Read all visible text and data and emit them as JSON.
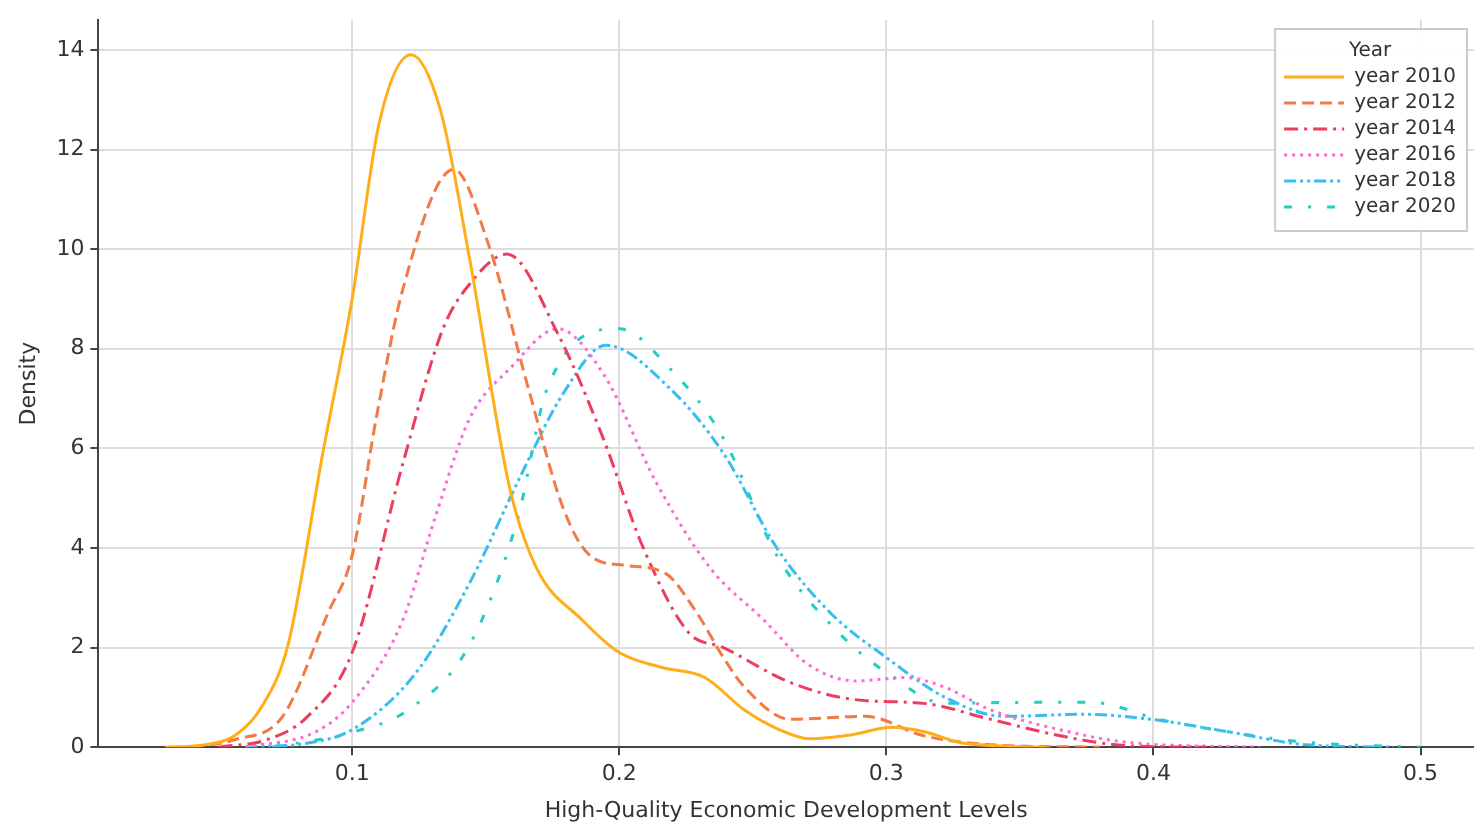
{
  "chart_data": {
    "type": "line",
    "xlabel": "High-Quality Economic Development Levels",
    "ylabel": "Density",
    "legend_title": "Year",
    "legend": "top right",
    "grid": true,
    "marker": "none",
    "xlim": [
      0.005,
      0.52
    ],
    "xticks": [
      0.1,
      0.2,
      0.3,
      0.4,
      0.5
    ],
    "ylim": [
      0,
      14.6
    ],
    "yticks": [
      0,
      2,
      4,
      6,
      8,
      10,
      12,
      14
    ],
    "series": [
      {
        "name": "year 2010",
        "color": "#ffae1a",
        "line_style": "solid",
        "x": [
          0.03,
          0.045,
          0.056,
          0.066,
          0.076,
          0.089,
          0.1,
          0.11,
          0.122,
          0.133,
          0.144,
          0.159,
          0.169,
          0.186,
          0.2,
          0.216,
          0.232,
          0.247,
          0.26,
          0.271,
          0.287,
          0.302,
          0.315,
          0.327,
          0.345,
          0.36
        ],
        "values": [
          0,
          0.05,
          0.23,
          0.8,
          2.06,
          5.9,
          9,
          12.5,
          13.9,
          12.8,
          9.8,
          5.2,
          3.6,
          2.56,
          1.9,
          1.6,
          1.4,
          0.74,
          0.35,
          0.17,
          0.25,
          0.4,
          0.3,
          0.1,
          0.02,
          0
        ]
      },
      {
        "name": "year 2012",
        "color": "#f27a45",
        "line_style": "dashed",
        "x": [
          0.04,
          0.056,
          0.074,
          0.091,
          0.1,
          0.109,
          0.119,
          0.138,
          0.151,
          0.166,
          0.179,
          0.189,
          0.202,
          0.217,
          0.229,
          0.239,
          0.247,
          0.264,
          0.292,
          0.314,
          0.339,
          0.38
        ],
        "values": [
          0,
          0.15,
          0.62,
          2.7,
          3.85,
          6.6,
          9.2,
          11.6,
          10.1,
          7.2,
          4.8,
          3.85,
          3.65,
          3.5,
          2.7,
          1.8,
          1.2,
          0.56,
          0.62,
          0.23,
          0.05,
          0
        ]
      },
      {
        "name": "year 2014",
        "color": "#ec3d5e",
        "line_style": "dashdot",
        "x": [
          0.05,
          0.068,
          0.083,
          0.1,
          0.119,
          0.134,
          0.144,
          0.158,
          0.177,
          0.194,
          0.209,
          0.226,
          0.239,
          0.264,
          0.289,
          0.314,
          0.339,
          0.365,
          0.39,
          0.42
        ],
        "values": [
          0,
          0.15,
          0.6,
          1.9,
          5.7,
          8.4,
          9.3,
          9.9,
          8.3,
          6.2,
          4.0,
          2.3,
          2.0,
          1.3,
          0.95,
          0.88,
          0.56,
          0.23,
          0.03,
          0
        ]
      },
      {
        "name": "year 2016",
        "color": "#ff6ad0",
        "line_style": "dotted",
        "x": [
          0.06,
          0.086,
          0.1,
          0.119,
          0.131,
          0.144,
          0.159,
          0.177,
          0.194,
          0.214,
          0.234,
          0.254,
          0.271,
          0.289,
          0.307,
          0.322,
          0.339,
          0.365,
          0.39,
          0.44
        ],
        "values": [
          0,
          0.3,
          0.9,
          2.56,
          4.6,
          6.6,
          7.6,
          8.4,
          7.5,
          5.3,
          3.6,
          2.56,
          1.65,
          1.33,
          1.4,
          1.2,
          0.75,
          0.35,
          0.1,
          0
        ]
      },
      {
        "name": "year 2018",
        "color": "#38bdf0",
        "line_style": "dashdotdot",
        "x": [
          0.06,
          0.083,
          0.1,
          0.124,
          0.144,
          0.164,
          0.179,
          0.195,
          0.219,
          0.239,
          0.259,
          0.279,
          0.3,
          0.322,
          0.344,
          0.374,
          0.399,
          0.429,
          0.457,
          0.49
        ],
        "values": [
          0,
          0.08,
          0.35,
          1.5,
          3.3,
          5.55,
          7.1,
          8.07,
          7.2,
          5.9,
          4.0,
          2.7,
          1.8,
          1.0,
          0.62,
          0.66,
          0.56,
          0.3,
          0.05,
          0
        ]
      },
      {
        "name": "year 2020",
        "color": "#1fcfc0",
        "line_style": "loosedashdot",
        "x": [
          0.07,
          0.1,
          0.121,
          0.144,
          0.162,
          0.173,
          0.2,
          0.219,
          0.239,
          0.259,
          0.284,
          0.3,
          0.322,
          0.352,
          0.377,
          0.402,
          0.429,
          0.457,
          0.5
        ],
        "values": [
          0,
          0.3,
          0.75,
          2.06,
          4.6,
          7.2,
          8.4,
          7.6,
          6.2,
          3.85,
          2.2,
          1.5,
          0.88,
          0.9,
          0.9,
          0.56,
          0.3,
          0.1,
          0
        ]
      }
    ]
  }
}
